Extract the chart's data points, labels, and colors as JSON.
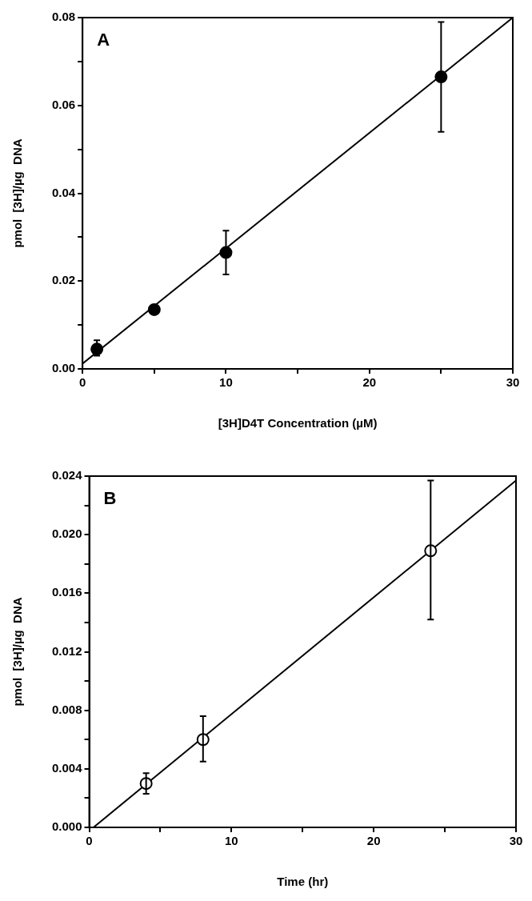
{
  "chart_data": [
    {
      "type": "scatter",
      "title": "A",
      "xlabel": "[3H]D4T Concentration (µM)",
      "ylabel": "pmol  [3H]/µg  DNA",
      "series": [
        {
          "color": "#000000",
          "marker": "circle",
          "x": [
            1,
            5,
            10,
            25
          ],
          "values": [
            0.0045,
            0.0135,
            0.0265,
            0.0665
          ],
          "errors": [
            [
              0.003,
              0.0065
            ],
            null,
            [
              0.0215,
              0.0315
            ],
            [
              0.054,
              0.079
            ]
          ]
        },
        {
          "type": "line",
          "color": "#000000",
          "marker": "none",
          "line_style": "solid",
          "x": [
            0,
            30
          ],
          "values": [
            0.0012,
            0.08
          ]
        }
      ],
      "xlim": [
        0,
        30
      ],
      "xticks": [
        0,
        {
          "value": 5,
          "label": null
        },
        10,
        {
          "value": 15,
          "label": null
        },
        20,
        {
          "value": 25,
          "label": null
        },
        30
      ],
      "ylim": [
        0,
        0.08
      ],
      "yticks": [
        {
          "value": 0,
          "label": "0.00"
        },
        {
          "value": 0.01,
          "label": null
        },
        {
          "value": 0.02,
          "label": "0.02"
        },
        {
          "value": 0.03,
          "label": null
        },
        {
          "value": 0.04,
          "label": "0.04"
        },
        {
          "value": 0.05,
          "label": null
        },
        {
          "value": 0.06,
          "label": "0.06"
        },
        {
          "value": 0.07,
          "label": null
        },
        {
          "value": 0.08,
          "label": "0.08"
        }
      ],
      "grid": false,
      "legend": false
    },
    {
      "type": "scatter",
      "title": "B",
      "xlabel": "Time (hr)",
      "ylabel": "pmol  [3H]/µg  DNA",
      "series": [
        {
          "color": "#000000",
          "marker": "circle",
          "x": [
            4,
            8,
            24
          ],
          "values": [
            0.003,
            0.006,
            0.0189
          ],
          "errors": [
            [
              0.0023,
              0.0037
            ],
            [
              0.0045,
              0.0076
            ],
            [
              0.0142,
              0.0237
            ]
          ]
        },
        {
          "type": "line",
          "color": "#000000",
          "marker": "none",
          "line_style": "solid",
          "x": [
            0.3,
            30
          ],
          "values": [
            0,
            0.0237
          ]
        }
      ],
      "xlim": [
        0,
        30
      ],
      "xticks": [
        0,
        {
          "value": 5,
          "label": null
        },
        10,
        {
          "value": 15,
          "label": null
        },
        20,
        {
          "value": 25,
          "label": null
        },
        30
      ],
      "ylim": [
        0,
        0.024
      ],
      "yticks": [
        {
          "value": 0,
          "label": "0.000"
        },
        {
          "value": 0.002,
          "label": null
        },
        {
          "value": 0.004,
          "label": "0.004"
        },
        {
          "value": 0.006,
          "label": null
        },
        {
          "value": 0.008,
          "label": "0.008"
        },
        {
          "value": 0.01,
          "label": null
        },
        {
          "value": 0.012,
          "label": "0.012"
        },
        {
          "value": 0.014,
          "label": null
        },
        {
          "value": 0.016,
          "label": "0.016"
        },
        {
          "value": 0.018,
          "label": null
        },
        {
          "value": 0.02,
          "label": "0.020"
        },
        {
          "value": 0.022,
          "label": null
        },
        {
          "value": 0.024,
          "label": "0.024"
        }
      ],
      "grid": false,
      "legend": false
    }
  ]
}
